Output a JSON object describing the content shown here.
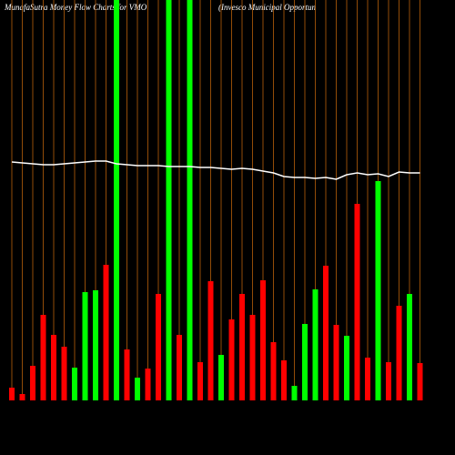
{
  "chart_data": {
    "type": "bar",
    "title": "MunafaSutra  Money Flow  Charts for VMO",
    "subtitle": "(Invesco  Municipal Opportun",
    "categories": [
      null,
      null,
      null,
      null,
      null,
      null,
      null,
      null,
      null,
      null,
      null,
      null,
      null,
      null,
      null,
      null,
      null,
      null,
      null,
      null,
      null,
      null,
      null,
      null,
      null,
      null,
      null,
      null,
      null,
      null,
      null,
      null,
      null,
      null,
      null,
      null,
      null,
      null,
      null,
      null
    ],
    "values": [
      14,
      7,
      38,
      94,
      72,
      59,
      36,
      119,
      121,
      149,
      440,
      56,
      25,
      35,
      117,
      440,
      72,
      440,
      42,
      131,
      50,
      89,
      117,
      94,
      132,
      64,
      44,
      16,
      84,
      122,
      148,
      83,
      71,
      216,
      47,
      241,
      42,
      104,
      117,
      41
    ],
    "colors": [
      "#ff0000",
      "#ff0000",
      "#ff0000",
      "#ff0000",
      "#ff0000",
      "#ff0000",
      "#00ff00",
      "#00ff00",
      "#00ff00",
      "#ff0000",
      "#00ff00",
      "#ff0000",
      "#00ff00",
      "#ff0000",
      "#ff0000",
      "#00ff00",
      "#ff0000",
      "#00ff00",
      "#ff0000",
      "#ff0000",
      "#00ff00",
      "#ff0000",
      "#ff0000",
      "#ff0000",
      "#ff0000",
      "#ff0000",
      "#ff0000",
      "#00ff00",
      "#00ff00",
      "#00ff00",
      "#ff0000",
      "#ff0000",
      "#00ff00",
      "#ff0000",
      "#ff0000",
      "#00ff00",
      "#ff0000",
      "#ff0000",
      "#00ff00",
      "#ff0000"
    ],
    "line": {
      "color": "#ffffff",
      "values": [
        262,
        261,
        260,
        259,
        259,
        260,
        261,
        262,
        263,
        263,
        260,
        259,
        258,
        258,
        258,
        257,
        257,
        257,
        256,
        256,
        255,
        254,
        255,
        254,
        252,
        250,
        246,
        245,
        245,
        244,
        245,
        243,
        248,
        250,
        248,
        249,
        246,
        251,
        250,
        250
      ]
    },
    "ylim": [
      0,
      440
    ],
    "grid": true,
    "grid_color": "#b8600a"
  }
}
